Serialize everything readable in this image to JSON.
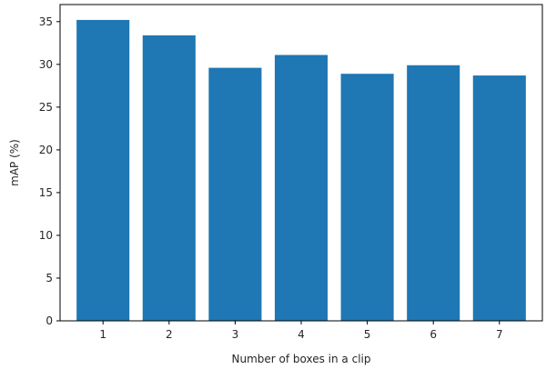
{
  "chart_data": {
    "type": "bar",
    "title": "",
    "xlabel": "Number of boxes in a clip",
    "ylabel": "mAP (%)",
    "categories": [
      "1",
      "2",
      "3",
      "4",
      "5",
      "6",
      "7"
    ],
    "values": [
      35.2,
      33.4,
      29.6,
      31.1,
      28.9,
      29.9,
      28.7
    ],
    "ylim": [
      0,
      37
    ],
    "yticks": [
      0,
      5,
      10,
      15,
      20,
      25,
      30,
      35
    ],
    "bar_color": "#1f77b4",
    "grid": false,
    "legend": "none"
  }
}
